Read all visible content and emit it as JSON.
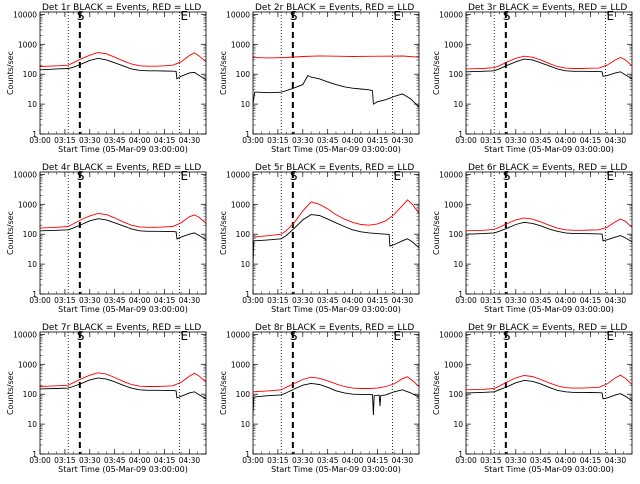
{
  "figure": {
    "xlabel": "Start Time (05-Mar-09 03:00:00)",
    "ylabel": "Counts/sec",
    "x_ticks": [
      "03:00",
      "03:15",
      "03:30",
      "03:45",
      "04:00",
      "04:15",
      "04:30"
    ],
    "y_ticks": [
      "1",
      "10",
      "100",
      "1000",
      "10000"
    ],
    "marker_labels": [
      "S",
      "E"
    ],
    "colors": {
      "events": "#000000",
      "lld": "#ff0000"
    }
  },
  "chart_data": [
    {
      "type": "line",
      "title": "Det 1r BLACK = Events, RED = LLD",
      "x_unit": "minutes after 03:00",
      "xlim": [
        0,
        100
      ],
      "ylim": [
        1,
        12000
      ],
      "yscale": "log",
      "dotted_lines": [
        17,
        84
      ],
      "dashed_line": 24,
      "series": [
        {
          "name": "Events",
          "color": "#000000",
          "x": [
            0,
            5,
            10,
            17,
            20,
            25,
            30,
            35,
            40,
            45,
            50,
            55,
            60,
            65,
            70,
            75,
            80,
            82,
            82.5,
            85,
            90,
            93,
            96,
            100
          ],
          "values": [
            140,
            145,
            150,
            155,
            170,
            220,
            290,
            340,
            300,
            240,
            190,
            150,
            135,
            130,
            130,
            128,
            126,
            125,
            70,
            85,
            110,
            115,
            90,
            65
          ]
        },
        {
          "name": "LLD",
          "color": "#ff0000",
          "x": [
            0,
            5,
            10,
            17,
            20,
            25,
            30,
            35,
            40,
            45,
            50,
            55,
            60,
            65,
            70,
            75,
            80,
            85,
            90,
            93,
            96,
            100
          ],
          "values": [
            180,
            185,
            190,
            200,
            240,
            330,
            430,
            530,
            480,
            370,
            280,
            220,
            190,
            185,
            185,
            190,
            200,
            260,
            420,
            520,
            400,
            260
          ]
        }
      ]
    },
    {
      "type": "line",
      "title": "Det 2r BLACK = Events, RED = LLD",
      "x_unit": "minutes after 03:00",
      "xlim": [
        0,
        100
      ],
      "ylim": [
        1,
        12000
      ],
      "yscale": "log",
      "dotted_lines": [
        17,
        84
      ],
      "dashed_line": 24,
      "series": [
        {
          "name": "Events",
          "color": "#000000",
          "x": [
            0,
            1,
            3,
            10,
            17,
            20,
            25,
            30,
            33,
            35,
            40,
            45,
            50,
            55,
            60,
            65,
            70,
            72,
            72.5,
            75,
            80,
            85,
            90,
            95,
            100
          ],
          "values": [
            10,
            25,
            25,
            24,
            25,
            28,
            35,
            45,
            90,
            80,
            70,
            55,
            45,
            38,
            34,
            32,
            30,
            28,
            10,
            12,
            14,
            18,
            22,
            15,
            8
          ]
        },
        {
          "name": "LLD",
          "color": "#ff0000",
          "x": [
            0,
            10,
            20,
            30,
            40,
            50,
            60,
            70,
            80,
            90,
            100
          ],
          "values": [
            360,
            350,
            360,
            390,
            410,
            400,
            390,
            395,
            400,
            405,
            370
          ]
        }
      ]
    },
    {
      "type": "line",
      "title": "Det 3r BLACK = Events, RED = LLD",
      "x_unit": "minutes after 03:00",
      "xlim": [
        0,
        100
      ],
      "ylim": [
        1,
        12000
      ],
      "yscale": "log",
      "dotted_lines": [
        17,
        84
      ],
      "dashed_line": 24,
      "series": [
        {
          "name": "Events",
          "color": "#000000",
          "x": [
            0,
            5,
            10,
            17,
            20,
            25,
            30,
            35,
            40,
            45,
            50,
            55,
            60,
            65,
            70,
            75,
            80,
            82,
            82.5,
            85,
            90,
            93,
            96,
            100
          ],
          "values": [
            120,
            122,
            125,
            130,
            150,
            200,
            260,
            320,
            300,
            240,
            190,
            150,
            130,
            125,
            125,
            124,
            122,
            120,
            85,
            90,
            110,
            120,
            95,
            70
          ]
        },
        {
          "name": "LLD",
          "color": "#ff0000",
          "x": [
            0,
            5,
            10,
            17,
            20,
            25,
            30,
            35,
            40,
            45,
            50,
            55,
            60,
            65,
            70,
            75,
            80,
            85,
            90,
            93,
            96,
            100
          ],
          "values": [
            150,
            152,
            155,
            165,
            190,
            260,
            340,
            400,
            370,
            300,
            230,
            180,
            160,
            155,
            155,
            158,
            160,
            200,
            300,
            360,
            300,
            190
          ]
        }
      ]
    },
    {
      "type": "line",
      "title": "Det 4r BLACK = Events, RED = LLD",
      "x_unit": "minutes after 03:00",
      "xlim": [
        0,
        100
      ],
      "ylim": [
        1,
        12000
      ],
      "yscale": "log",
      "dotted_lines": [
        17,
        84
      ],
      "dashed_line": 24,
      "series": [
        {
          "name": "Events",
          "color": "#000000",
          "x": [
            0,
            5,
            10,
            17,
            20,
            25,
            30,
            35,
            40,
            45,
            50,
            55,
            60,
            65,
            70,
            75,
            80,
            82,
            82.5,
            85,
            90,
            93,
            96,
            100
          ],
          "values": [
            130,
            132,
            135,
            140,
            160,
            210,
            280,
            330,
            300,
            240,
            190,
            150,
            130,
            125,
            125,
            124,
            122,
            120,
            70,
            80,
            100,
            110,
            90,
            65
          ]
        },
        {
          "name": "LLD",
          "color": "#ff0000",
          "x": [
            0,
            5,
            10,
            17,
            20,
            25,
            30,
            35,
            40,
            45,
            50,
            55,
            60,
            65,
            70,
            75,
            80,
            85,
            90,
            93,
            96,
            100
          ],
          "values": [
            160,
            165,
            170,
            180,
            220,
            310,
            410,
            490,
            450,
            350,
            260,
            200,
            175,
            170,
            170,
            175,
            180,
            240,
            380,
            440,
            360,
            230
          ]
        }
      ]
    },
    {
      "type": "line",
      "title": "Det 5r BLACK = Events, RED = LLD",
      "x_unit": "minutes after 03:00",
      "xlim": [
        0,
        100
      ],
      "ylim": [
        1,
        12000
      ],
      "yscale": "log",
      "dotted_lines": [
        17,
        84
      ],
      "dashed_line": 24,
      "series": [
        {
          "name": "Events",
          "color": "#000000",
          "x": [
            0,
            0.5,
            5,
            10,
            17,
            20,
            25,
            30,
            35,
            40,
            45,
            50,
            55,
            60,
            65,
            70,
            75,
            80,
            82,
            82.5,
            85,
            90,
            93,
            96,
            100
          ],
          "values": [
            10,
            60,
            62,
            65,
            70,
            90,
            160,
            300,
            450,
            420,
            320,
            240,
            180,
            140,
            120,
            110,
            105,
            100,
            98,
            40,
            45,
            60,
            70,
            55,
            35
          ]
        },
        {
          "name": "LLD",
          "color": "#ff0000",
          "x": [
            0,
            5,
            10,
            17,
            20,
            25,
            30,
            35,
            40,
            45,
            50,
            55,
            60,
            65,
            70,
            75,
            80,
            85,
            90,
            93,
            96,
            100
          ],
          "values": [
            80,
            85,
            90,
            100,
            130,
            250,
            600,
            1200,
            1000,
            700,
            450,
            320,
            250,
            210,
            200,
            220,
            280,
            450,
            900,
            1400,
            1000,
            500
          ]
        }
      ]
    },
    {
      "type": "line",
      "title": "Det 6r BLACK = Events, RED = LLD",
      "x_unit": "minutes after 03:00",
      "xlim": [
        0,
        100
      ],
      "ylim": [
        1,
        12000
      ],
      "yscale": "log",
      "dotted_lines": [
        17,
        84
      ],
      "dashed_line": 24,
      "series": [
        {
          "name": "Events",
          "color": "#000000",
          "x": [
            0,
            5,
            10,
            17,
            20,
            25,
            30,
            35,
            40,
            45,
            50,
            55,
            60,
            65,
            70,
            75,
            80,
            82,
            82.5,
            85,
            90,
            93,
            96,
            100
          ],
          "values": [
            100,
            102,
            105,
            110,
            125,
            160,
            210,
            250,
            230,
            190,
            150,
            125,
            110,
            105,
            105,
            104,
            102,
            100,
            60,
            65,
            80,
            90,
            75,
            55
          ]
        },
        {
          "name": "LLD",
          "color": "#ff0000",
          "x": [
            0,
            5,
            10,
            17,
            20,
            25,
            30,
            35,
            40,
            45,
            50,
            55,
            60,
            65,
            70,
            75,
            80,
            85,
            90,
            93,
            96,
            100
          ],
          "values": [
            130,
            132,
            135,
            145,
            170,
            230,
            300,
            350,
            320,
            260,
            200,
            160,
            140,
            135,
            135,
            138,
            140,
            170,
            260,
            320,
            270,
            170
          ]
        }
      ]
    },
    {
      "type": "line",
      "title": "Det 7r BLACK = Events, RED = LLD",
      "x_unit": "minutes after 03:00",
      "xlim": [
        0,
        100
      ],
      "ylim": [
        1,
        12000
      ],
      "yscale": "log",
      "dotted_lines": [
        17,
        84
      ],
      "dashed_line": 24,
      "series": [
        {
          "name": "Events",
          "color": "#000000",
          "x": [
            0,
            5,
            10,
            17,
            20,
            25,
            30,
            35,
            40,
            45,
            50,
            55,
            60,
            65,
            70,
            75,
            80,
            82,
            82.5,
            85,
            90,
            93,
            96,
            100
          ],
          "values": [
            150,
            152,
            155,
            160,
            180,
            230,
            300,
            350,
            320,
            260,
            200,
            160,
            140,
            135,
            135,
            134,
            132,
            130,
            75,
            85,
            110,
            120,
            95,
            70
          ]
        },
        {
          "name": "LLD",
          "color": "#ff0000",
          "x": [
            0,
            5,
            10,
            17,
            20,
            25,
            30,
            35,
            40,
            45,
            50,
            55,
            60,
            65,
            70,
            75,
            80,
            85,
            90,
            93,
            96,
            100
          ],
          "values": [
            180,
            185,
            190,
            200,
            240,
            330,
            430,
            520,
            470,
            360,
            270,
            210,
            185,
            180,
            180,
            185,
            190,
            250,
            400,
            500,
            400,
            250
          ]
        }
      ]
    },
    {
      "type": "line",
      "title": "Det 8r BLACK = Events, RED = LLD",
      "x_unit": "minutes after 03:00",
      "xlim": [
        0,
        100
      ],
      "ylim": [
        1,
        12000
      ],
      "yscale": "log",
      "dotted_lines": [
        17,
        84
      ],
      "dashed_line": 24,
      "series": [
        {
          "name": "Events",
          "color": "#000000",
          "x": [
            0,
            0.5,
            5,
            10,
            17,
            20,
            25,
            30,
            35,
            40,
            45,
            50,
            55,
            60,
            65,
            70,
            72,
            72.5,
            73,
            75,
            76,
            76.5,
            77,
            80,
            85,
            90,
            95,
            100
          ],
          "values": [
            20,
            80,
            85,
            90,
            95,
            110,
            150,
            200,
            230,
            210,
            170,
            130,
            110,
            100,
            98,
            97,
            96,
            20,
            90,
            92,
            93,
            40,
            90,
            95,
            120,
            140,
            110,
            80
          ]
        },
        {
          "name": "LLD",
          "color": "#ff0000",
          "x": [
            0,
            5,
            10,
            17,
            20,
            25,
            30,
            35,
            40,
            45,
            50,
            55,
            60,
            65,
            70,
            75,
            80,
            85,
            90,
            93,
            96,
            100
          ],
          "values": [
            120,
            125,
            130,
            140,
            170,
            230,
            310,
            370,
            340,
            280,
            220,
            180,
            160,
            155,
            155,
            160,
            180,
            220,
            330,
            380,
            290,
            180
          ]
        }
      ]
    },
    {
      "type": "line",
      "title": "Det 9r BLACK = Events, RED = LLD",
      "x_unit": "minutes after 03:00",
      "xlim": [
        0,
        100
      ],
      "ylim": [
        1,
        12000
      ],
      "yscale": "log",
      "dotted_lines": [
        17,
        84
      ],
      "dashed_line": 24,
      "series": [
        {
          "name": "Events",
          "color": "#000000",
          "x": [
            0,
            5,
            10,
            17,
            20,
            25,
            30,
            35,
            40,
            45,
            50,
            55,
            60,
            65,
            70,
            75,
            80,
            82,
            82.5,
            85,
            90,
            93,
            96,
            100
          ],
          "values": [
            110,
            112,
            115,
            120,
            140,
            180,
            240,
            290,
            270,
            220,
            170,
            135,
            120,
            115,
            115,
            114,
            112,
            110,
            70,
            75,
            95,
            105,
            85,
            60
          ]
        },
        {
          "name": "LLD",
          "color": "#ff0000",
          "x": [
            0,
            5,
            10,
            17,
            20,
            25,
            30,
            35,
            40,
            45,
            50,
            55,
            60,
            65,
            70,
            75,
            80,
            85,
            90,
            93,
            96,
            100
          ],
          "values": [
            140,
            142,
            145,
            155,
            185,
            260,
            350,
            420,
            390,
            310,
            240,
            190,
            165,
            160,
            160,
            165,
            170,
            220,
            350,
            430,
            340,
            210
          ]
        }
      ]
    }
  ]
}
